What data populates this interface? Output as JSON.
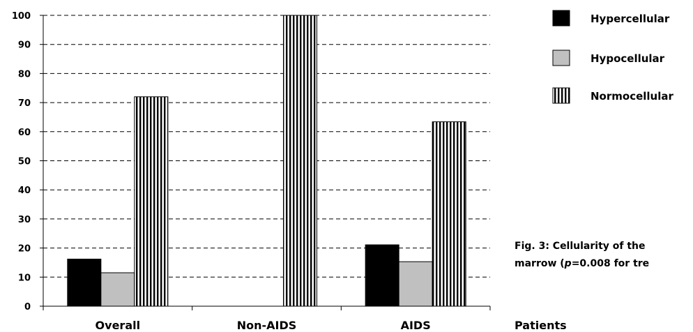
{
  "chart_data": {
    "type": "bar",
    "categories": [
      "Overall",
      "Non-AIDS",
      "AIDS"
    ],
    "series": [
      {
        "name": "Hypercellular",
        "values": [
          16.2,
          0,
          21.1
        ],
        "color": "#000000",
        "pattern": "solid"
      },
      {
        "name": "Hypocellular",
        "values": [
          11.5,
          0,
          15.3
        ],
        "color": "#c0c0c0",
        "pattern": "solid"
      },
      {
        "name": "Normocellular",
        "values": [
          72,
          100,
          63.4
        ],
        "color": "#ffffff",
        "pattern": "vertical-stripes"
      }
    ],
    "ylim": [
      0,
      100
    ],
    "yticks": [
      0,
      10,
      20,
      30,
      40,
      50,
      60,
      70,
      80,
      90,
      100
    ],
    "xlabel": "Patients",
    "ylabel": "",
    "grid": "dashed-horizontal",
    "legend": "top-right"
  },
  "caption": {
    "line1": "Fig. 3: Cellularity of the",
    "line2_prefix": "marrow (",
    "line2_italic": "p",
    "line2_suffix": "=0.008 for tre"
  }
}
